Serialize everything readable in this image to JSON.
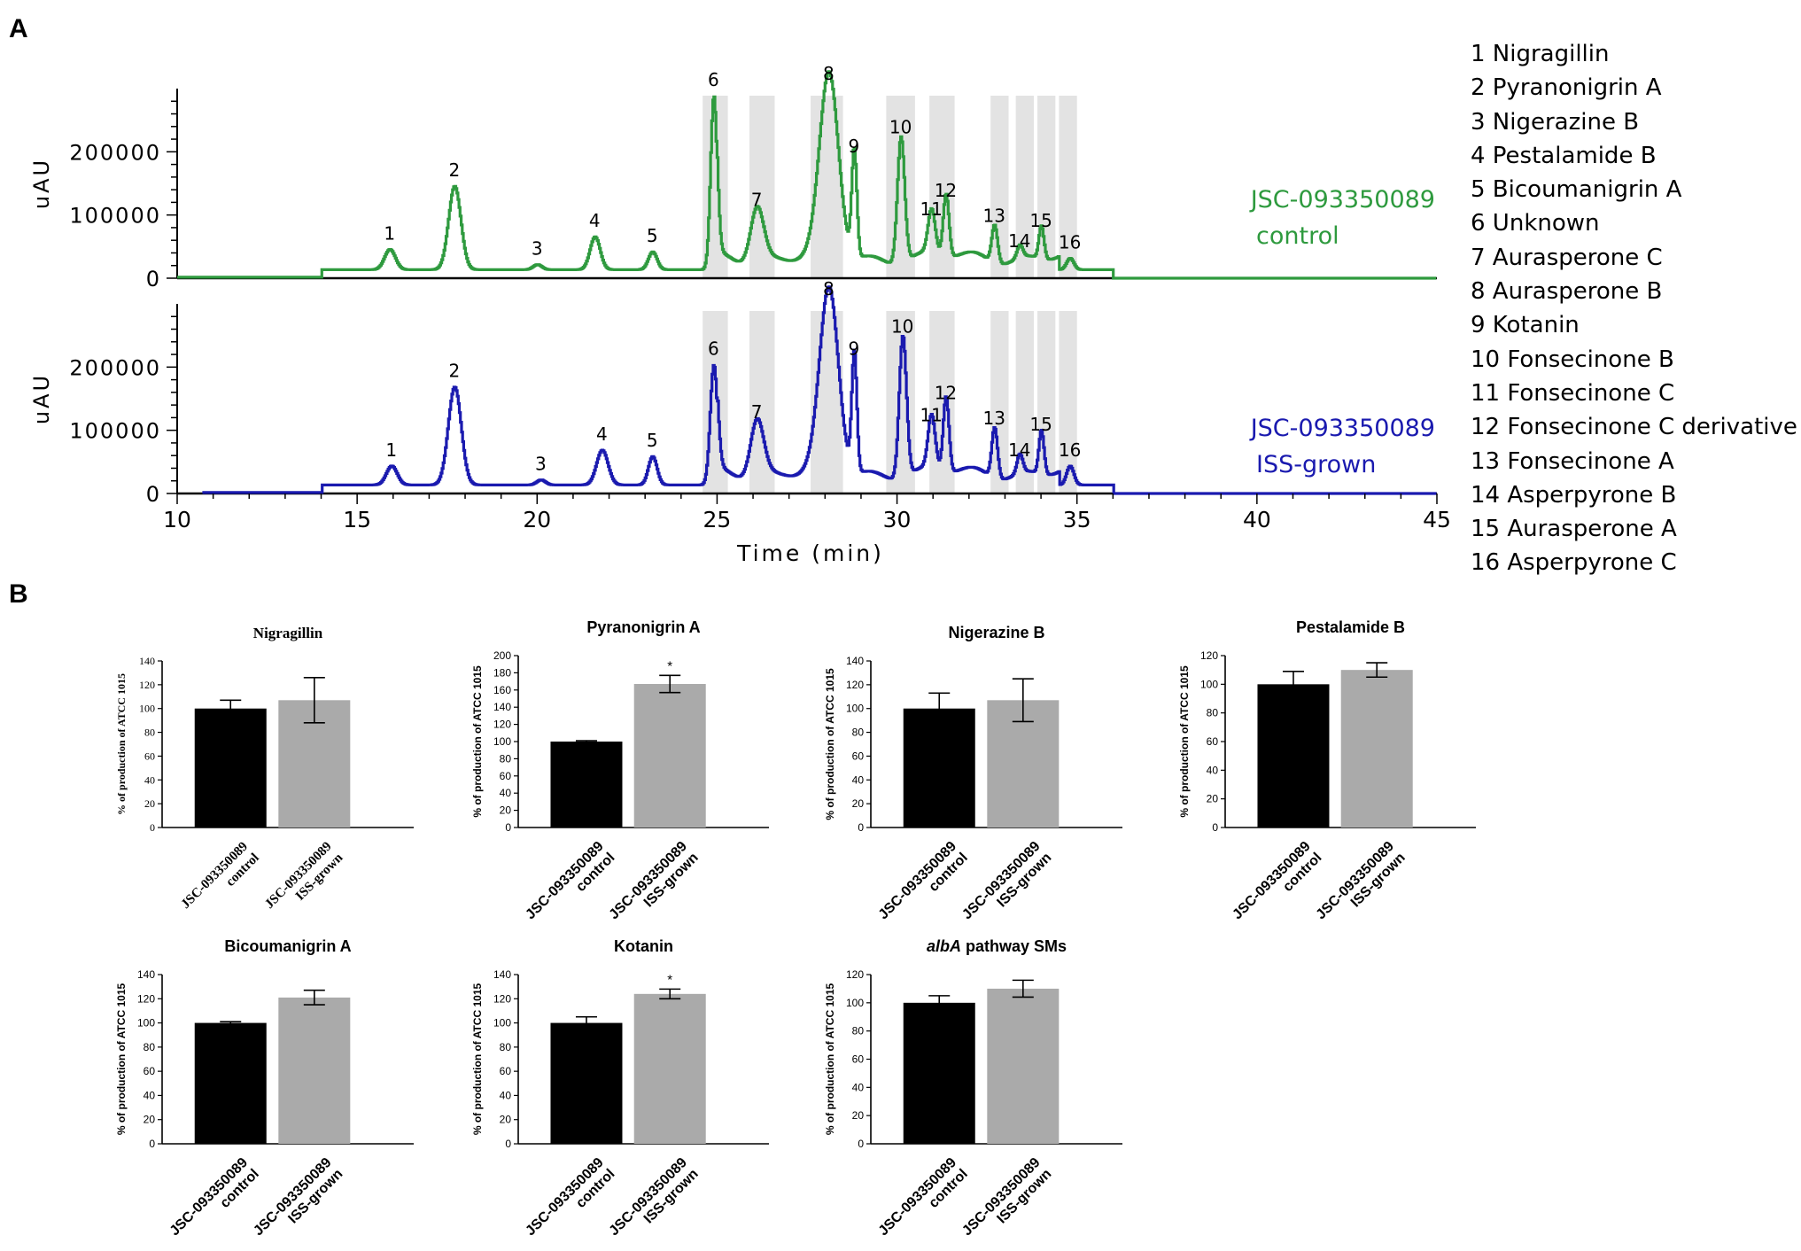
{
  "panel_a_label": "A",
  "panel_b_label": "B",
  "chromatograms": {
    "ylabel": "uAU",
    "xlabel": "Time (min)",
    "xlim": [
      10,
      45
    ],
    "xticks": [
      "10",
      "15",
      "20",
      "25",
      "30",
      "35",
      "40",
      "45"
    ],
    "ylim": [
      0,
      300000
    ],
    "yticks": [
      "0",
      "100000",
      "200000"
    ],
    "colors": {
      "control": "#2e9a3e",
      "iss": "#1a1aaf",
      "shade": "#e3e3e3"
    },
    "shaded_bands_min": [
      [
        24.6,
        25.3
      ],
      [
        25.9,
        26.6
      ],
      [
        27.6,
        28.5
      ],
      [
        29.7,
        30.5
      ],
      [
        30.9,
        31.6
      ],
      [
        32.6,
        33.1
      ],
      [
        33.3,
        33.8
      ],
      [
        33.9,
        34.4
      ],
      [
        34.5,
        35.0
      ]
    ],
    "control": {
      "name_line1": "JSC-093350089",
      "name_line2": "control",
      "peaks": [
        {
          "id": "1",
          "t": 15.9,
          "h": 32000,
          "w": 0.15
        },
        {
          "id": "2",
          "t": 17.7,
          "h": 132000,
          "w": 0.17
        },
        {
          "id": "3",
          "t": 20.0,
          "h": 8000,
          "w": 0.12
        },
        {
          "id": "4",
          "t": 21.6,
          "h": 52000,
          "w": 0.14
        },
        {
          "id": "5",
          "t": 23.2,
          "h": 28000,
          "w": 0.12
        },
        {
          "id": "6",
          "t": 24.9,
          "h": 275000,
          "w": 0.09
        },
        {
          "id": "7",
          "t": 26.1,
          "h": 85000,
          "w": 0.18
        },
        {
          "id": "8",
          "t": 28.1,
          "h": 285000,
          "w": 0.26
        },
        {
          "id": "9",
          "t": 28.8,
          "h": 170000,
          "w": 0.07
        },
        {
          "id": "10",
          "t": 30.1,
          "h": 200000,
          "w": 0.1
        },
        {
          "id": "11",
          "t": 30.95,
          "h": 70000,
          "w": 0.1
        },
        {
          "id": "12",
          "t": 31.35,
          "h": 100000,
          "w": 0.08
        },
        {
          "id": "13",
          "t": 32.7,
          "h": 60000,
          "w": 0.08
        },
        {
          "id": "14",
          "t": 33.4,
          "h": 20000,
          "w": 0.08
        },
        {
          "id": "15",
          "t": 34.0,
          "h": 52000,
          "w": 0.07
        },
        {
          "id": "16",
          "t": 34.8,
          "h": 18000,
          "w": 0.1
        }
      ]
    },
    "iss": {
      "name_line1": "JSC-093350089",
      "name_line2": "ISS-grown",
      "peaks": [
        {
          "id": "1",
          "t": 15.95,
          "h": 30000,
          "w": 0.15
        },
        {
          "id": "2",
          "t": 17.7,
          "h": 155000,
          "w": 0.18
        },
        {
          "id": "3",
          "t": 20.1,
          "h": 8000,
          "w": 0.12
        },
        {
          "id": "4",
          "t": 21.8,
          "h": 55000,
          "w": 0.16
        },
        {
          "id": "5",
          "t": 23.2,
          "h": 45000,
          "w": 0.12
        },
        {
          "id": "6",
          "t": 24.9,
          "h": 190000,
          "w": 0.1
        },
        {
          "id": "7",
          "t": 26.1,
          "h": 90000,
          "w": 0.18
        },
        {
          "id": "8",
          "t": 28.1,
          "h": 285000,
          "w": 0.26
        },
        {
          "id": "9",
          "t": 28.8,
          "h": 190000,
          "w": 0.07
        },
        {
          "id": "10",
          "t": 30.15,
          "h": 225000,
          "w": 0.1
        },
        {
          "id": "11",
          "t": 30.95,
          "h": 85000,
          "w": 0.1
        },
        {
          "id": "12",
          "t": 31.35,
          "h": 120000,
          "w": 0.08
        },
        {
          "id": "13",
          "t": 32.7,
          "h": 80000,
          "w": 0.08
        },
        {
          "id": "14",
          "t": 33.4,
          "h": 30000,
          "w": 0.08
        },
        {
          "id": "15",
          "t": 34.0,
          "h": 70000,
          "w": 0.07
        },
        {
          "id": "16",
          "t": 34.8,
          "h": 30000,
          "w": 0.1
        }
      ]
    },
    "compound_legend": [
      "1 Nigragillin",
      "2 Pyranonigrin A",
      "3 Nigerazine B",
      "4 Pestalamide B",
      "5 Bicoumanigrin A",
      "6 Unknown",
      "7 Aurasperone C",
      "8 Aurasperone B",
      "9 Kotanin",
      "10 Fonsecinone B",
      "11 Fonsecinone C",
      "12 Fonsecinone C derivative",
      "13 Fonsecinone A",
      "14 Asperpyrone B",
      "15 Aurasperone A",
      "16 Asperpyrone C"
    ]
  },
  "chart_data": [
    {
      "type": "bar",
      "title": "Nigragillin",
      "title_italic_prefix": "",
      "font": "serif",
      "ylabel": "% of production of ATCC 1015",
      "ylim": [
        0,
        140
      ],
      "yticks": [
        0,
        20,
        40,
        60,
        80,
        100,
        120,
        140
      ],
      "categories": [
        "JSC-093350089 control",
        "JSC-093350089 ISS-grown"
      ],
      "category_line1": [
        "JSC-093350089",
        "JSC-093350089"
      ],
      "category_line2": [
        "control",
        "ISS-grown"
      ],
      "values": [
        100,
        107
      ],
      "errors": [
        7,
        19
      ],
      "significance": [
        "",
        ""
      ],
      "bar_colors": [
        "#000000",
        "#aaaaaa"
      ]
    },
    {
      "type": "bar",
      "title": "Pyranonigrin A",
      "title_italic_prefix": "",
      "font": "sans",
      "ylabel": "% of production of ATCC 1015",
      "ylim": [
        0,
        200
      ],
      "yticks": [
        0,
        20,
        40,
        60,
        80,
        100,
        120,
        140,
        160,
        180,
        200
      ],
      "categories": [
        "JSC-093350089 control",
        "JSC-093350089 ISS-grown"
      ],
      "category_line1": [
        "JSC-093350089",
        "JSC-093350089"
      ],
      "category_line2": [
        "control",
        "ISS-grown"
      ],
      "values": [
        100,
        167
      ],
      "errors": [
        1,
        10
      ],
      "significance": [
        "",
        "*"
      ],
      "bar_colors": [
        "#000000",
        "#aaaaaa"
      ]
    },
    {
      "type": "bar",
      "title": "Nigerazine B",
      "title_italic_prefix": "",
      "font": "sans",
      "ylabel": "% of production of ATCC 1015",
      "ylim": [
        0,
        140
      ],
      "yticks": [
        0,
        20,
        40,
        60,
        80,
        100,
        120,
        140
      ],
      "categories": [
        "JSC-093350089 control",
        "JSC-093350089 ISS-grown"
      ],
      "category_line1": [
        "JSC-093350089",
        "JSC-093350089"
      ],
      "category_line2": [
        "control",
        "ISS-grown"
      ],
      "values": [
        100,
        107
      ],
      "errors": [
        13,
        18
      ],
      "significance": [
        "",
        ""
      ],
      "bar_colors": [
        "#000000",
        "#aaaaaa"
      ]
    },
    {
      "type": "bar",
      "title": "Pestalamide B",
      "title_italic_prefix": "",
      "font": "sans",
      "ylabel": "% of production of ATCC 1015",
      "ylim": [
        0,
        120
      ],
      "yticks": [
        0,
        20,
        40,
        60,
        80,
        100,
        120
      ],
      "categories": [
        "JSC-093350089 control",
        "JSC-093350089 ISS-grown"
      ],
      "category_line1": [
        "JSC-093350089",
        "JSC-093350089"
      ],
      "category_line2": [
        "control",
        "ISS-grown"
      ],
      "values": [
        100,
        110
      ],
      "errors": [
        9,
        5
      ],
      "significance": [
        "",
        ""
      ],
      "bar_colors": [
        "#000000",
        "#aaaaaa"
      ]
    },
    {
      "type": "bar",
      "title": "Bicoumanigrin A",
      "title_italic_prefix": "",
      "font": "sans",
      "ylabel": "% of production of ATCC 1015",
      "ylim": [
        0,
        140
      ],
      "yticks": [
        0,
        20,
        40,
        60,
        80,
        100,
        120,
        140
      ],
      "categories": [
        "JSC-093350089 control",
        "JSC-093350089 ISS-grown"
      ],
      "category_line1": [
        "JSC-093350089",
        "JSC-093350089"
      ],
      "category_line2": [
        "control",
        "ISS-grown"
      ],
      "values": [
        100,
        121
      ],
      "errors": [
        1,
        6
      ],
      "significance": [
        "",
        ""
      ],
      "bar_colors": [
        "#000000",
        "#aaaaaa"
      ]
    },
    {
      "type": "bar",
      "title": "Kotanin",
      "title_italic_prefix": "",
      "font": "sans",
      "ylabel": "% of production of ATCC 1015",
      "ylim": [
        0,
        140
      ],
      "yticks": [
        0,
        20,
        40,
        60,
        80,
        100,
        120,
        140
      ],
      "categories": [
        "JSC-093350089 control",
        "JSC-093350089 ISS-grown"
      ],
      "category_line1": [
        "JSC-093350089",
        "JSC-093350089"
      ],
      "category_line2": [
        "control",
        "ISS-grown"
      ],
      "values": [
        100,
        124
      ],
      "errors": [
        5,
        4
      ],
      "significance": [
        "",
        "*"
      ],
      "bar_colors": [
        "#000000",
        "#aaaaaa"
      ]
    },
    {
      "type": "bar",
      "title": " pathway SMs",
      "title_italic_prefix": "albA",
      "font": "sans",
      "ylabel": "% of production of ATCC 1015",
      "ylim": [
        0,
        120
      ],
      "yticks": [
        0,
        20,
        40,
        60,
        80,
        100,
        120
      ],
      "categories": [
        "JSC-093350089 control",
        "JSC-093350089 ISS-grown"
      ],
      "category_line1": [
        "JSC-093350089",
        "JSC-093350089"
      ],
      "category_line2": [
        "control",
        "ISS-grown"
      ],
      "values": [
        100,
        110
      ],
      "errors": [
        5,
        6
      ],
      "significance": [
        "",
        ""
      ],
      "bar_colors": [
        "#000000",
        "#aaaaaa"
      ]
    }
  ]
}
